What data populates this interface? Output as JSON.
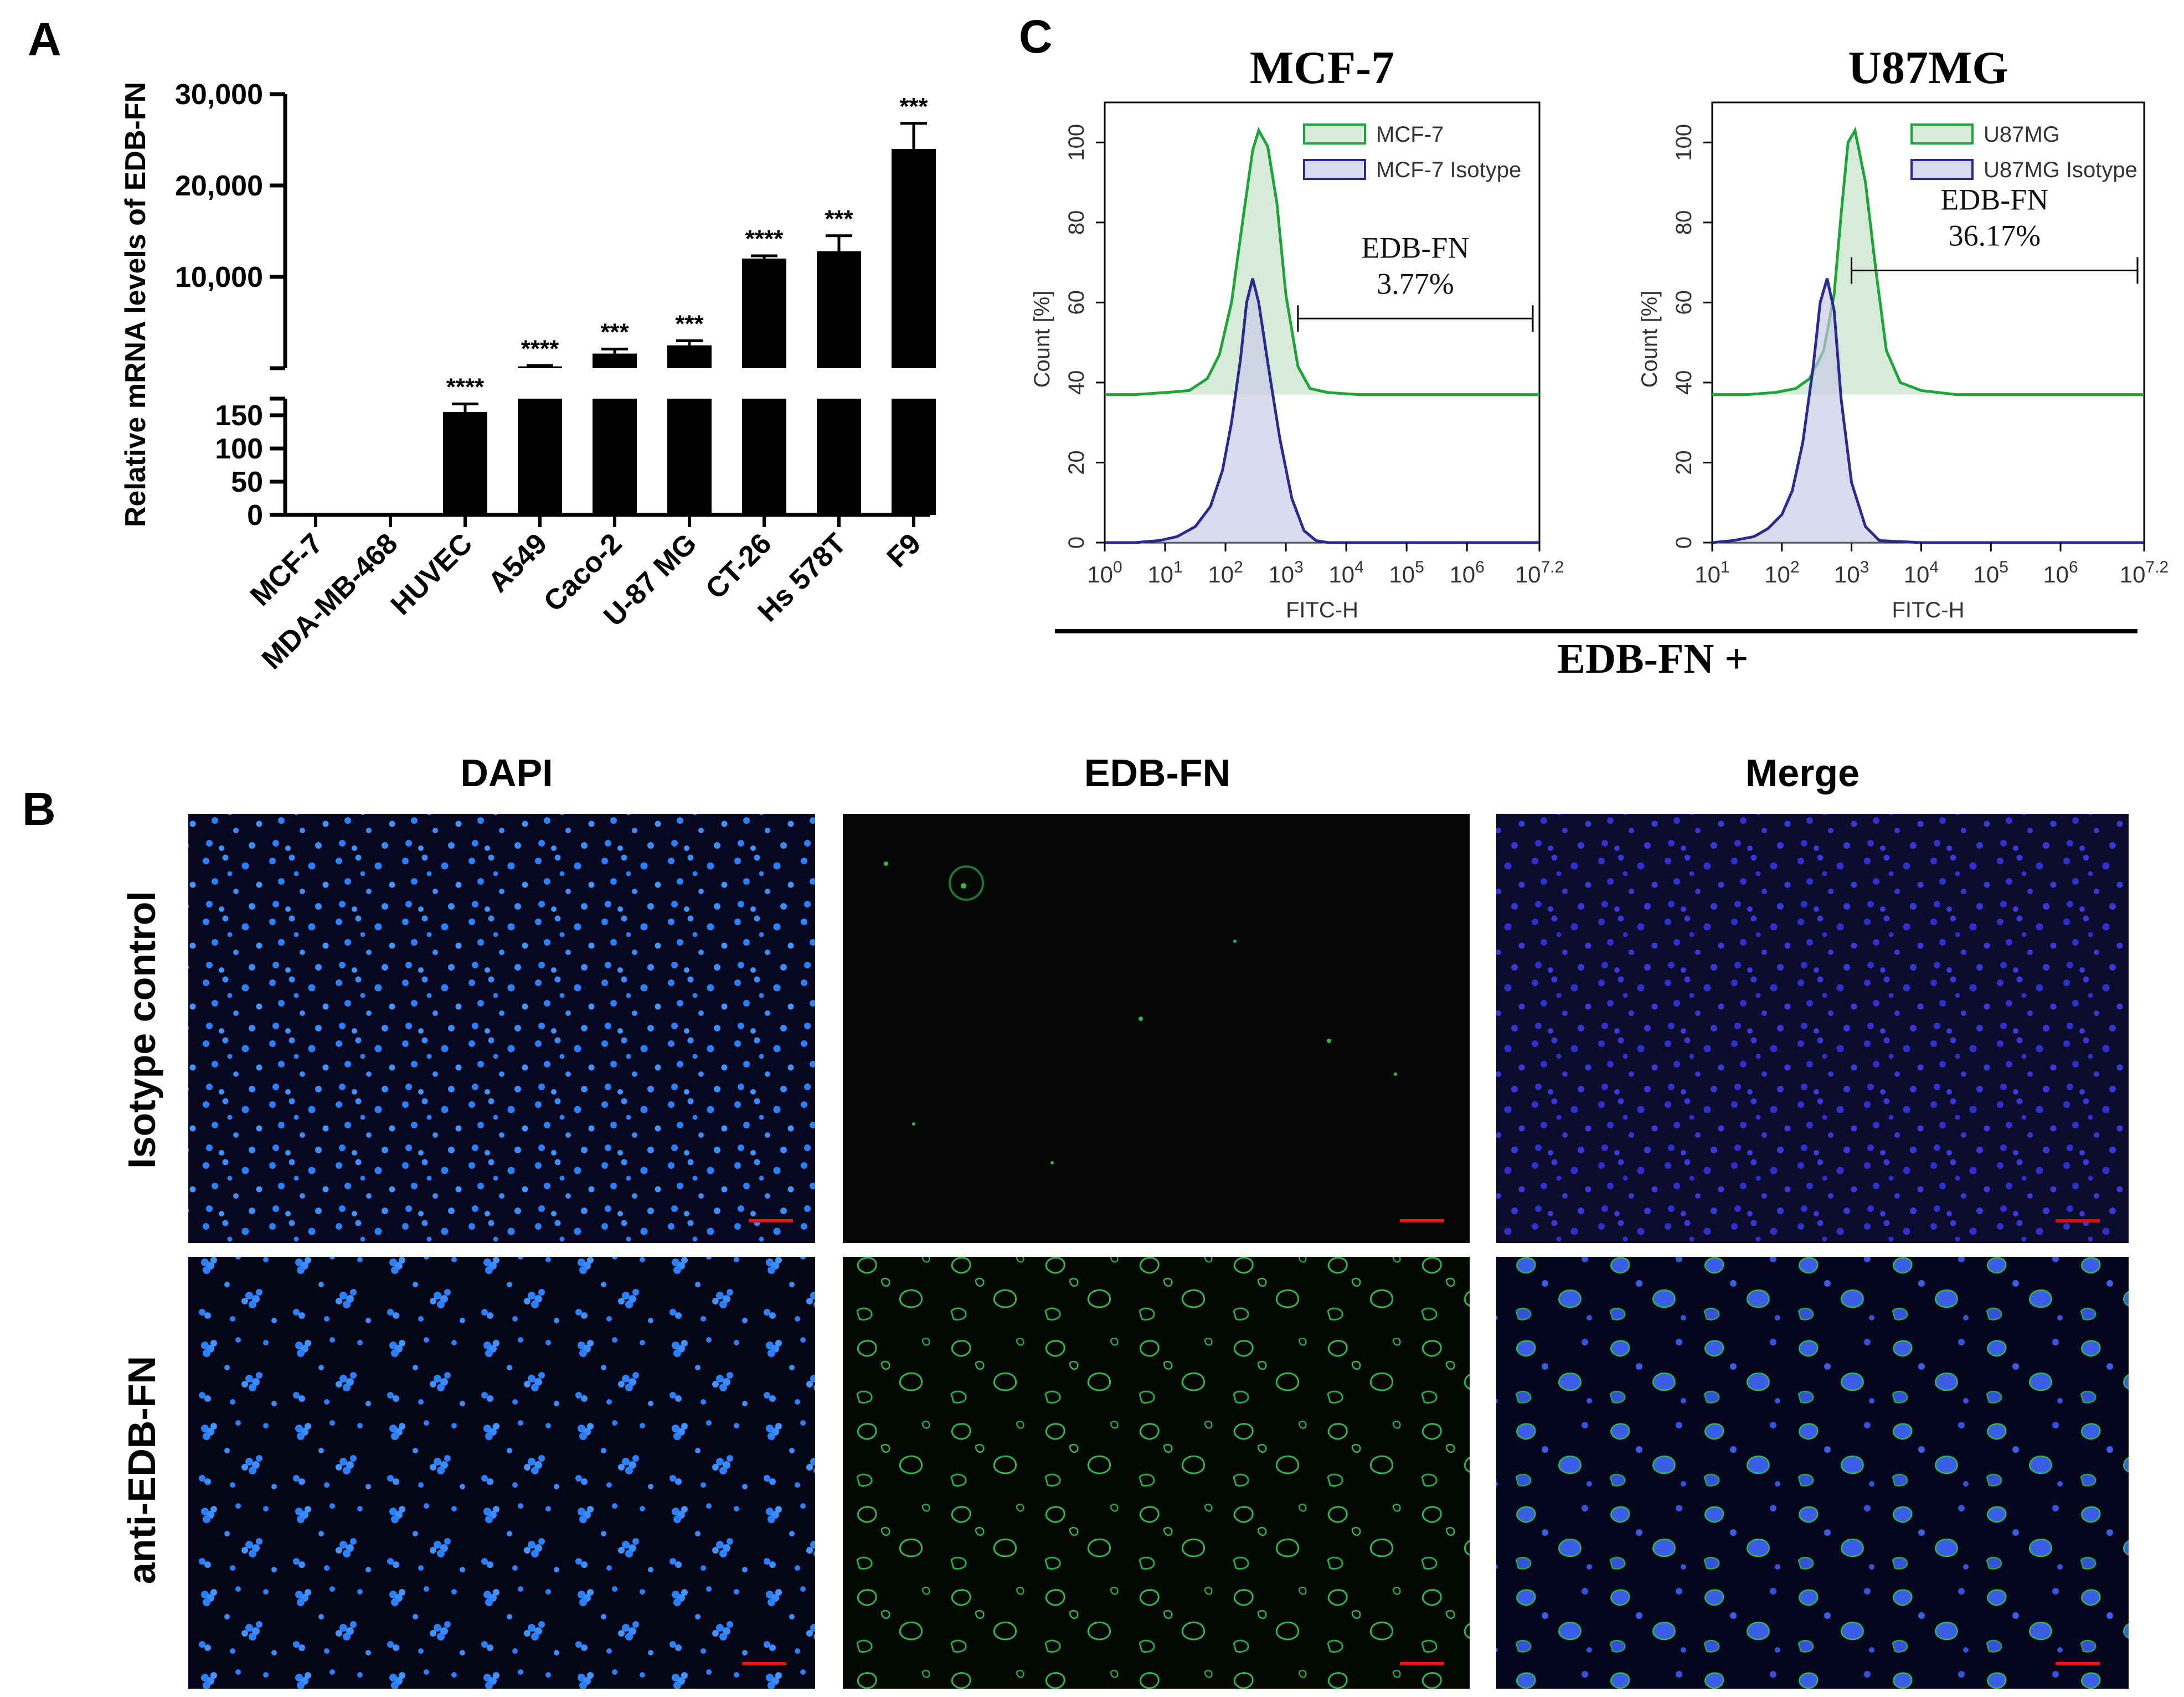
{
  "panel_labels": {
    "a": "A",
    "b": "B",
    "c": "C"
  },
  "colors": {
    "bar": "#000000",
    "histogram_sample": "#1fa33a",
    "histogram_isotype": "#2a2a8f",
    "nuclei": "#1f6fe0",
    "edb_green": "#29b34a",
    "scale_bar": "#e01010"
  },
  "chart_data": [
    {
      "id": "A",
      "type": "bar",
      "title": "",
      "ylabel": "Relative mRNA levels of EDB-FN",
      "xlabel": "",
      "axis_break": true,
      "lower_segment": {
        "ylim": [
          0,
          175
        ],
        "ticks": [
          "0",
          "50",
          "100",
          "150"
        ],
        "tick_values": [
          0,
          50,
          100,
          150
        ]
      },
      "upper_segment": {
        "ylim": [
          0,
          30000
        ],
        "ticks": [
          "10,000",
          "20,000",
          "30,000"
        ],
        "tick_values": [
          10000,
          20000,
          30000
        ]
      },
      "categories": [
        "MCF-7",
        "MDA-MB-468",
        "HUVEC",
        "A549",
        "Caco-2",
        "U-87 MG",
        "CT-26",
        "Hs 578T",
        "F9"
      ],
      "values": [
        1,
        2,
        155,
        200,
        1600,
        2500,
        12000,
        12800,
        24000
      ],
      "errors": [
        0,
        0,
        12,
        80,
        500,
        500,
        300,
        1700,
        2800
      ],
      "significance": [
        "",
        "",
        "****",
        "****",
        "***",
        "***",
        "****",
        "***",
        "***"
      ]
    },
    {
      "id": "C-left",
      "type": "area",
      "title": "MCF-7",
      "xlabel": "FITC-H",
      "ylabel": "Count [%]",
      "xscale": "log10",
      "xlim": [
        0,
        7.2
      ],
      "ylim": [
        0,
        110
      ],
      "x_ticks": [
        0,
        1,
        2,
        3,
        4,
        5,
        6,
        7.2
      ],
      "x_tick_labels": [
        {
          "base": "10",
          "exp": "0"
        },
        {
          "base": "10",
          "exp": "1"
        },
        {
          "base": "10",
          "exp": "2"
        },
        {
          "base": "10",
          "exp": "3"
        },
        {
          "base": "10",
          "exp": "4"
        },
        {
          "base": "10",
          "exp": "5"
        },
        {
          "base": "10",
          "exp": "6"
        },
        {
          "base": "10",
          "exp": "7.2"
        }
      ],
      "y_ticks": [
        "0",
        "20",
        "40",
        "60",
        "80",
        "100"
      ],
      "y_tick_values": [
        0,
        20,
        40,
        60,
        80,
        100
      ],
      "legend": [
        "MCF-7",
        "MCF-7 Isotype"
      ],
      "series": [
        {
          "name": "MCF-7",
          "baseline": 37,
          "x": [
            0,
            0.5,
            1,
            1.4,
            1.7,
            1.9,
            2.1,
            2.3,
            2.45,
            2.55,
            2.7,
            2.85,
            3.0,
            3.2,
            3.4,
            3.7,
            4.2,
            5,
            6,
            7.2
          ],
          "y": [
            37,
            37,
            37.5,
            38,
            41,
            47,
            60,
            82,
            98,
            103,
            99,
            85,
            62,
            44,
            38.5,
            37.5,
            37,
            37,
            37,
            37
          ]
        },
        {
          "name": "MCF-7 Isotype",
          "baseline": 0,
          "x": [
            0,
            0.5,
            0.9,
            1.2,
            1.5,
            1.75,
            1.95,
            2.1,
            2.25,
            2.35,
            2.45,
            2.55,
            2.7,
            2.9,
            3.1,
            3.3,
            3.5,
            3.7,
            4.5,
            7.2
          ],
          "y": [
            0,
            0,
            0.5,
            1.5,
            4,
            9,
            18,
            30,
            46,
            60,
            66,
            60,
            45,
            26,
            11,
            3,
            0.5,
            0,
            0,
            0
          ]
        }
      ],
      "gate": {
        "label": "EDB-FN",
        "percent": "3.77%",
        "x_start": 3.2,
        "x_end": 7.2,
        "y": 56
      }
    },
    {
      "id": "C-right",
      "type": "area",
      "title": "U87MG",
      "xlabel": "FITC-H",
      "ylabel": "Count [%]",
      "xscale": "log10",
      "xlim": [
        1,
        7.2
      ],
      "ylim": [
        0,
        110
      ],
      "x_ticks": [
        1,
        2,
        3,
        4,
        5,
        6,
        7.2
      ],
      "x_tick_labels": [
        {
          "base": "10",
          "exp": "1"
        },
        {
          "base": "10",
          "exp": "2"
        },
        {
          "base": "10",
          "exp": "3"
        },
        {
          "base": "10",
          "exp": "4"
        },
        {
          "base": "10",
          "exp": "5"
        },
        {
          "base": "10",
          "exp": "6"
        },
        {
          "base": "10",
          "exp": "7.2"
        }
      ],
      "y_ticks": [
        "0",
        "20",
        "40",
        "60",
        "80",
        "100"
      ],
      "y_tick_values": [
        0,
        20,
        40,
        60,
        80,
        100
      ],
      "legend": [
        "U87MG",
        "U87MG Isotype"
      ],
      "series": [
        {
          "name": "U87MG",
          "baseline": 37,
          "x": [
            1,
            1.5,
            1.9,
            2.2,
            2.4,
            2.6,
            2.75,
            2.85,
            2.95,
            3.05,
            3.2,
            3.35,
            3.5,
            3.7,
            4.0,
            4.5,
            5.5,
            7.2
          ],
          "y": [
            37,
            37,
            37.5,
            38.5,
            41,
            48,
            62,
            82,
            100,
            103,
            90,
            68,
            48,
            40,
            38,
            37,
            37,
            37
          ]
        },
        {
          "name": "U87MG Isotype",
          "baseline": 0,
          "x": [
            1,
            1.3,
            1.6,
            1.8,
            2.0,
            2.15,
            2.3,
            2.45,
            2.55,
            2.65,
            2.75,
            2.85,
            3.0,
            3.2,
            3.4,
            4.0,
            7.2
          ],
          "y": [
            0,
            0.5,
            1.5,
            3.5,
            7,
            13,
            25,
            44,
            60,
            66,
            58,
            36,
            15,
            4,
            0.5,
            0,
            0
          ]
        }
      ],
      "gate": {
        "label": "EDB-FN",
        "percent": "36.17%",
        "x_start": 3.0,
        "x_end": 7.2,
        "y": 68
      }
    }
  ],
  "panel_c_footer": "EDB-FN +",
  "panel_b": {
    "columns": [
      "DAPI",
      "EDB-FN",
      "Merge"
    ],
    "rows": [
      "Isotype control",
      "anti-EDB-FN"
    ]
  }
}
